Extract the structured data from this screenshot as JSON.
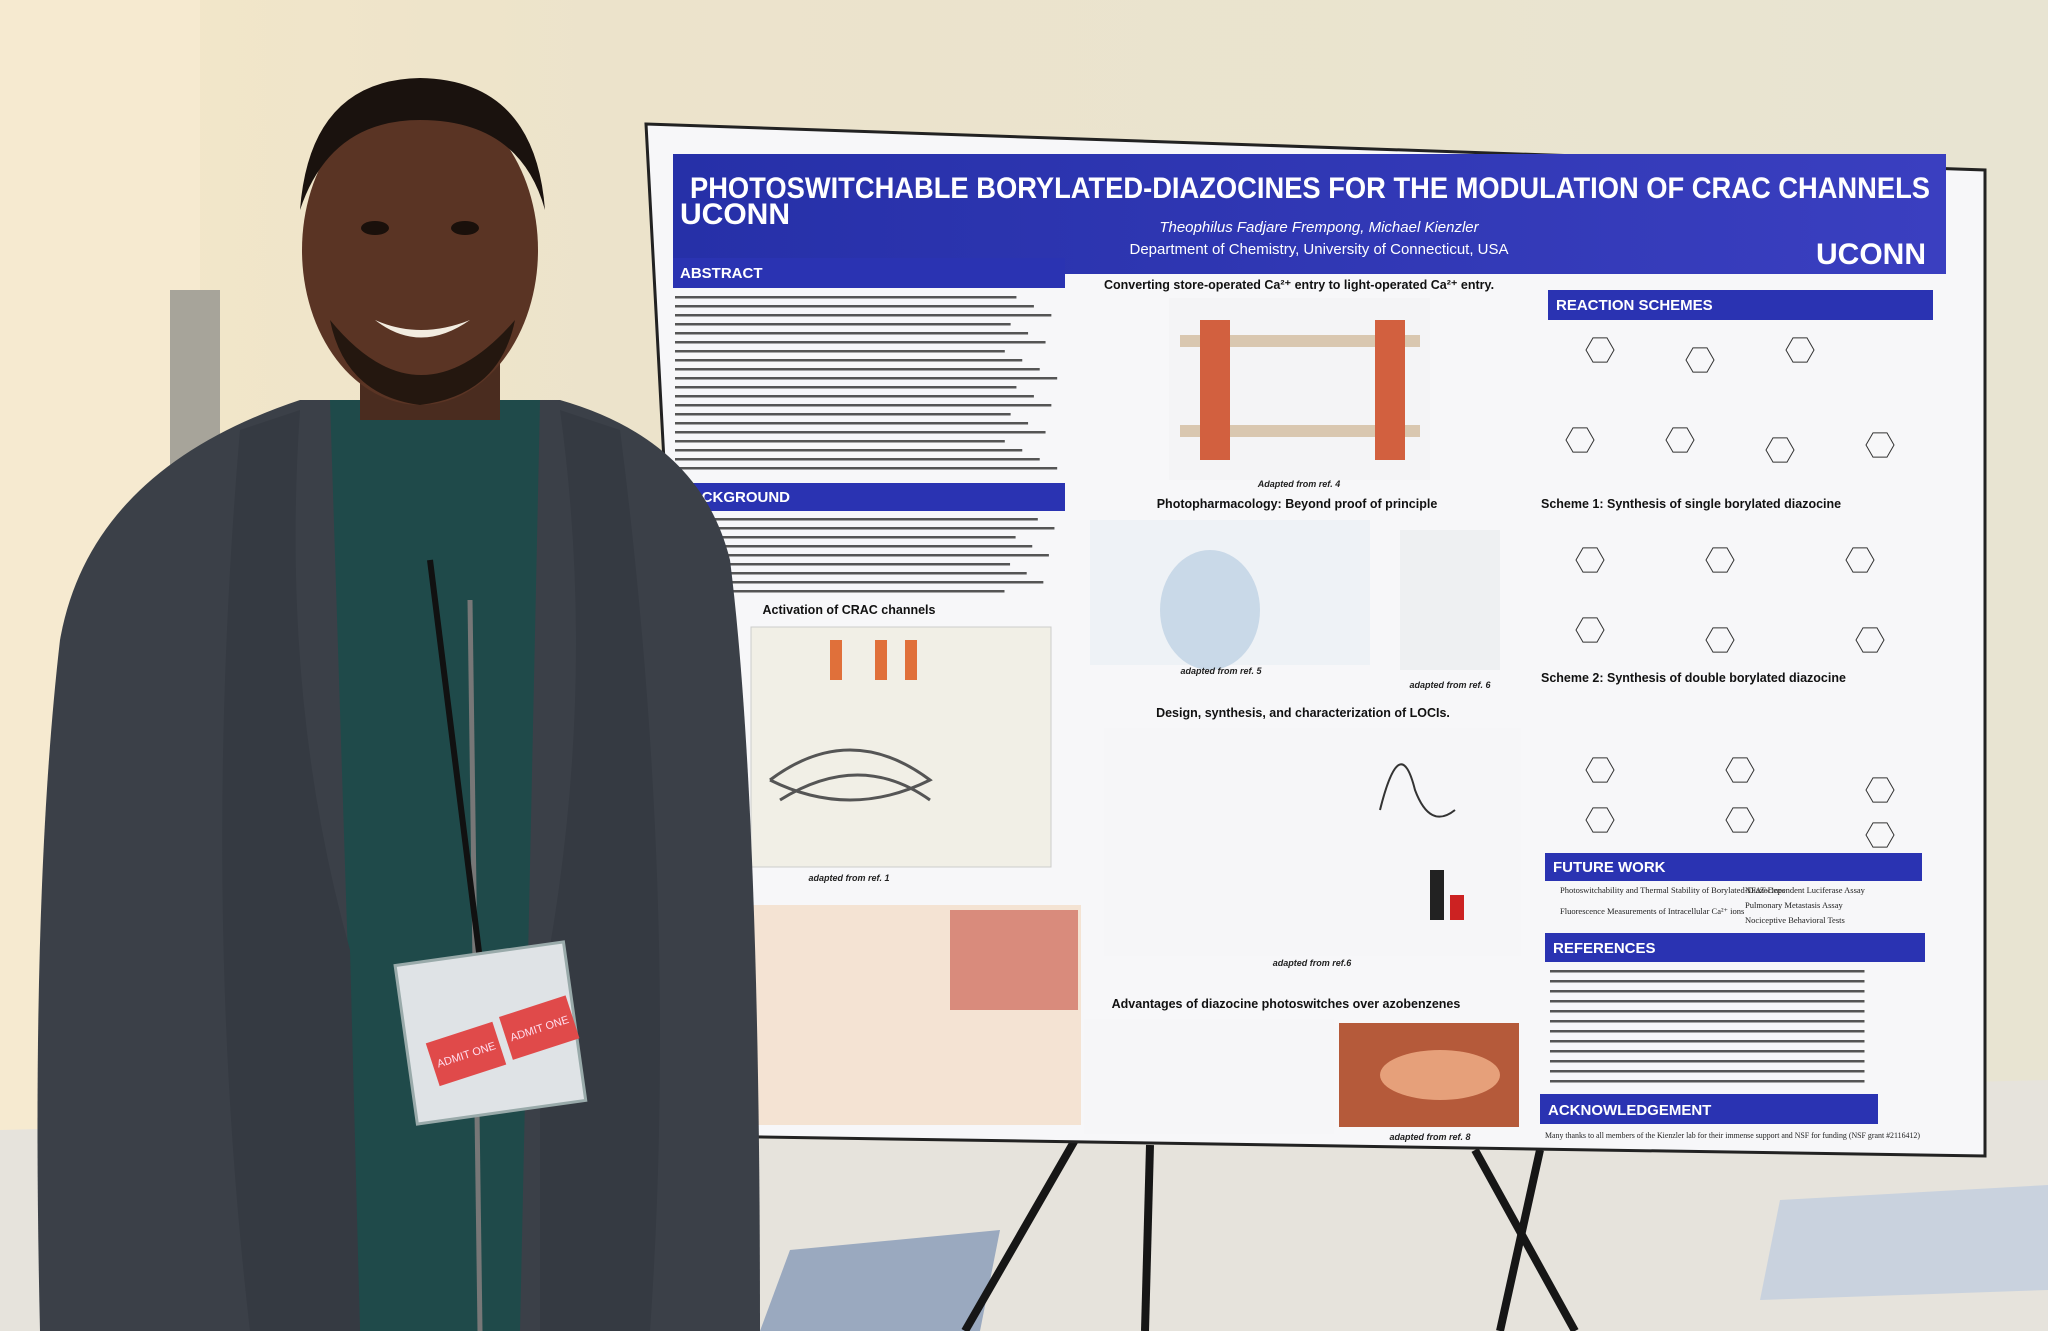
{
  "poster": {
    "title": "PHOTOSWITCHABLE BORYLATED-DIAZOCINES FOR THE MODULATION OF CRAC CHANNELS",
    "logo_left": "UCONN",
    "logo_right": "UCONN",
    "authors": "Theophilus Fadjare Frempong, Michael Kienzler",
    "affiliation": "Department of Chemistry, University of Connecticut, USA",
    "sections": {
      "abstract": "ABSTRACT",
      "background": "BACKGROUND",
      "reaction_schemes": "REACTION SCHEMES",
      "future_work": "FUTURE WORK",
      "references": "REFERENCES",
      "acknowledgement": "ACKNOWLEDGEMENT"
    },
    "figures": [
      "Activation of CRAC channels",
      "Converting store-operated Ca²⁺ entry to light-operated Ca²⁺ entry.",
      "Photopharmacology: Beyond proof of principle",
      "Design, synthesis, and characterization of LOCIs.",
      "Advantages of diazocine photoswitches over azobenzenes",
      "Scheme 1: Synthesis of single borylated diazocine",
      "Scheme 2: Synthesis of double borylated diazocine"
    ],
    "captions": [
      "adapted from ref. 1",
      "Adapted from ref. 4",
      "adapted from ref. 5",
      "adapted from ref. 6",
      "adapted from ref.6",
      "adapted from ref. 8"
    ],
    "future_work_items": [
      "Photoswitchability and Thermal Stability of Borylated-Diazocines",
      "Fluorescence Measurements of Intracellular Ca²⁺ ions",
      "NFAT-Dependent Luciferase Assay",
      "Pulmonary Metastasis Assay",
      "Nociceptive Behavioral Tests"
    ],
    "acknowledgement_text": "Many thanks to all members of the Kienzler lab for their immense support and NSF for funding (NSF grant #2116412)"
  },
  "badge": {
    "ticket_1": "ADMIT ONE",
    "ticket_2": "ADMIT ONE"
  }
}
